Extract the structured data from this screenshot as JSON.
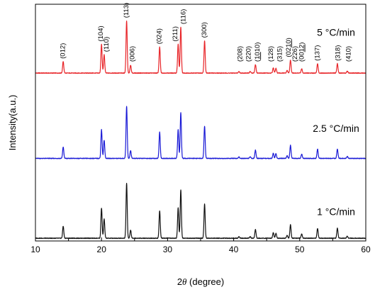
{
  "chart_data": {
    "type": "line",
    "xlabel_prefix": "2",
    "xlabel_symbol": "θ",
    "xlabel_suffix": " (degree)",
    "ylabel": "Intensity(a.u.)",
    "xlim": [
      10,
      60
    ],
    "xticks": [
      10,
      20,
      30,
      40,
      50,
      60
    ],
    "grid": false,
    "baselines": {
      "red": 3.05,
      "blue": 1.5,
      "black": 0.05
    },
    "peaks": [
      {
        "x": 14.2,
        "h": 0.22
      },
      {
        "x": 20.0,
        "h": 0.55
      },
      {
        "x": 20.4,
        "h": 0.35
      },
      {
        "x": 23.8,
        "h": 1.0
      },
      {
        "x": 24.4,
        "h": 0.15
      },
      {
        "x": 28.8,
        "h": 0.5
      },
      {
        "x": 31.6,
        "h": 0.55
      },
      {
        "x": 32.0,
        "h": 0.88
      },
      {
        "x": 35.6,
        "h": 0.62
      },
      {
        "x": 40.8,
        "h": 0.03
      },
      {
        "x": 42.5,
        "h": 0.03
      },
      {
        "x": 43.3,
        "h": 0.16
      },
      {
        "x": 46.0,
        "h": 0.1
      },
      {
        "x": 46.4,
        "h": 0.09
      },
      {
        "x": 48.1,
        "h": 0.05
      },
      {
        "x": 48.6,
        "h": 0.25
      },
      {
        "x": 50.3,
        "h": 0.08
      },
      {
        "x": 52.7,
        "h": 0.18
      },
      {
        "x": 55.7,
        "h": 0.18
      },
      {
        "x": 57.2,
        "h": 0.04
      }
    ],
    "series": [
      {
        "name": "5 °C/min",
        "color": "#e8262a"
      },
      {
        "name": "2.5 °C/min",
        "color": "#1a1ad6"
      },
      {
        "name": "1 °C/min",
        "color": "#111111"
      }
    ],
    "annotations": [
      {
        "text": "(012)",
        "x": 14.2
      },
      {
        "text": "(104)",
        "x": 19.9
      },
      {
        "text": "(110)",
        "x": 20.8
      },
      {
        "text": "(113)",
        "x": 23.8
      },
      {
        "text": "(006)",
        "x": 24.7
      },
      {
        "text": "(024)",
        "x": 28.8
      },
      {
        "text": "(211)",
        "x": 31.2
      },
      {
        "text": "(116)",
        "x": 32.4
      },
      {
        "text": "(300)",
        "x": 35.6
      },
      {
        "text": "(208)",
        "x": 41.0
      },
      {
        "text": "(220)",
        "x": 42.3
      },
      {
        "text": "(1010)",
        "x": 43.6,
        "underline": "10"
      },
      {
        "text": "(128)",
        "x": 45.7
      },
      {
        "text": "(315)",
        "x": 47.0
      },
      {
        "text": "(0210)",
        "x": 48.3,
        "underline": "10"
      },
      {
        "text": "(226)",
        "x": 49.3
      },
      {
        "text": "(0012)",
        "x": 50.3,
        "underline": "12"
      },
      {
        "text": "(137)",
        "x": 52.7
      },
      {
        "text": "(318)",
        "x": 55.8
      },
      {
        "text": "(410)",
        "x": 57.4
      }
    ]
  }
}
